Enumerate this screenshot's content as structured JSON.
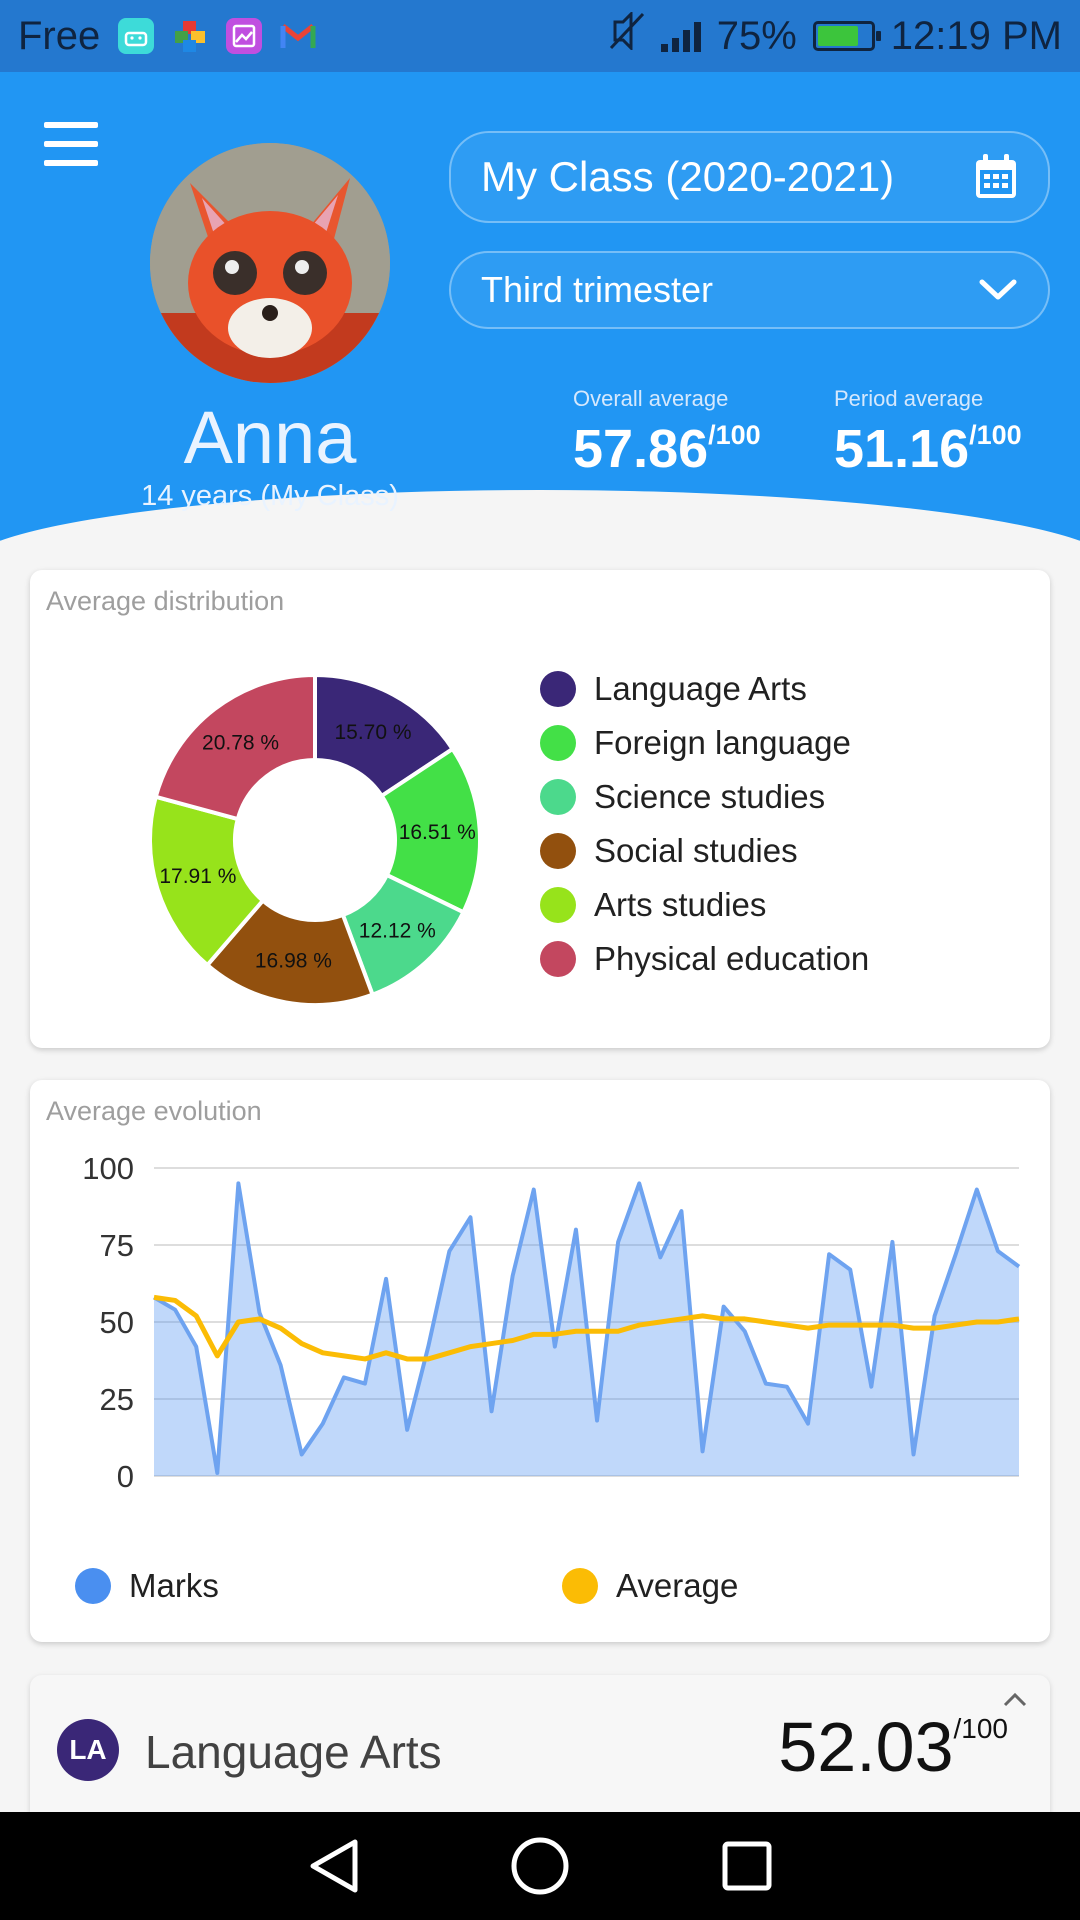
{
  "status_bar": {
    "carrier": "Free",
    "battery": "75%",
    "time": "12:19 PM",
    "icons": [
      "android-app-icon",
      "puzzle-app-icon",
      "gallery-app-icon",
      "gmail-icon",
      "mute-icon",
      "signal-icon",
      "battery-icon"
    ]
  },
  "header": {
    "class_selector": "My Class (2020-2021)",
    "period_selector": "Third trimester",
    "student": {
      "name": "Anna",
      "subtitle": "14 years (My Class)"
    },
    "overall": {
      "label": "Overall average",
      "value": "57.86",
      "suffix": "/100"
    },
    "period": {
      "label": "Period average",
      "value": "51.16",
      "suffix": "/100"
    },
    "colors": {
      "primary": "#2196f3",
      "status": "#2478cf"
    }
  },
  "distribution": {
    "title": "Average distribution",
    "chart_data": {
      "type": "pie",
      "series": [
        {
          "name": "Language Arts",
          "value": 15.7,
          "label": "15.70 %",
          "color": "#3a2777"
        },
        {
          "name": "Foreign language",
          "value": 16.51,
          "label": "16.51 %",
          "color": "#43e047"
        },
        {
          "name": "Science studies",
          "value": 12.12,
          "label": "12.12 %",
          "color": "#4cd98c"
        },
        {
          "name": "Social studies",
          "value": 16.98,
          "label": "16.98 %",
          "color": "#92500e"
        },
        {
          "name": "Arts studies",
          "value": 17.91,
          "label": "17.91 %",
          "color": "#97e31b"
        },
        {
          "name": "Physical education",
          "value": 20.78,
          "label": "20.78 %",
          "color": "#c3475f"
        }
      ]
    }
  },
  "evolution": {
    "title": "Average evolution",
    "chart_data": {
      "type": "area",
      "ylim": [
        0,
        100
      ],
      "yticks": [
        "100",
        "75",
        "50",
        "25",
        "0"
      ],
      "grid": true,
      "legend_position": "bottom",
      "series": [
        {
          "name": "Marks",
          "type": "area",
          "color": "#4a8ff0",
          "values": [
            58,
            54,
            42,
            1,
            95,
            53,
            36,
            7,
            17,
            32,
            30,
            64,
            15,
            42,
            73,
            84,
            21,
            65,
            93,
            42,
            80,
            18,
            76,
            95,
            71,
            86,
            8,
            55,
            47,
            30,
            29,
            17,
            72,
            67,
            29,
            76,
            7,
            52,
            72,
            93,
            73,
            68
          ]
        },
        {
          "name": "Average",
          "type": "line",
          "color": "#fbbc05",
          "values": [
            58,
            57,
            52,
            39,
            50,
            51,
            48,
            43,
            40,
            39,
            38,
            40,
            38,
            38,
            40,
            42,
            43,
            44,
            46,
            46,
            47,
            47,
            47,
            49,
            50,
            51,
            52,
            51,
            51,
            50,
            49,
            48,
            49,
            49,
            49,
            49,
            48,
            48,
            49,
            50,
            50,
            51
          ]
        }
      ]
    }
  },
  "subject": {
    "badge": "LA",
    "name": "Language Arts",
    "value": "52.03",
    "suffix": "/100",
    "color": "#3a2777"
  },
  "nav": {
    "back": "back-icon",
    "home": "home-icon",
    "recents": "recents-icon"
  }
}
